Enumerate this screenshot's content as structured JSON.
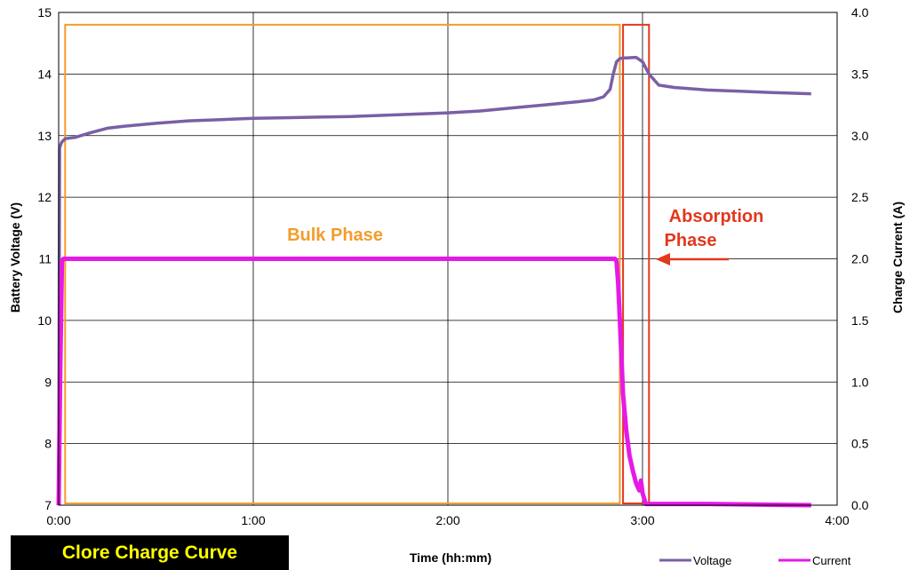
{
  "chart_data": {
    "type": "line",
    "title": "Clore Charge Curve",
    "xlabel": "Time (hh:mm)",
    "ylabel_left": "Battery Voltage (V)",
    "ylabel_right": "Charge Current (A)",
    "x_unit": "minutes",
    "xlim": [
      0,
      240
    ],
    "ylim_left": [
      7,
      15
    ],
    "ylim_right": [
      0,
      4
    ],
    "x_ticks": [
      {
        "value": 0,
        "label": "0:00"
      },
      {
        "value": 60,
        "label": "1:00"
      },
      {
        "value": 120,
        "label": "2:00"
      },
      {
        "value": 180,
        "label": "3:00"
      },
      {
        "value": 240,
        "label": "4:00"
      }
    ],
    "y_ticks_left": [
      "7",
      "8",
      "9",
      "10",
      "11",
      "12",
      "13",
      "14",
      "15"
    ],
    "y_ticks_right": [
      "0.0",
      "0.5",
      "1.0",
      "1.5",
      "2.0",
      "2.5",
      "3.0",
      "3.5",
      "4.0"
    ],
    "grid": true,
    "legend_position": "bottom-right",
    "series": [
      {
        "name": "Voltage",
        "axis": "left",
        "color": "#7a5fa6",
        "x": [
          0,
          0.3,
          0.6,
          1,
          2,
          5,
          10,
          15,
          20,
          30,
          40,
          50,
          60,
          70,
          80,
          90,
          100,
          110,
          120,
          130,
          140,
          150,
          160,
          165,
          168,
          170,
          171,
          172,
          173,
          174,
          175,
          178,
          180,
          182,
          185,
          190,
          200,
          210,
          220,
          232
        ],
        "values": [
          7.1,
          12.8,
          12.85,
          12.9,
          12.95,
          12.97,
          13.05,
          13.12,
          13.15,
          13.2,
          13.24,
          13.26,
          13.28,
          13.29,
          13.3,
          13.31,
          13.33,
          13.35,
          13.37,
          13.4,
          13.45,
          13.5,
          13.55,
          13.58,
          13.63,
          13.75,
          14.0,
          14.2,
          14.25,
          14.26,
          14.26,
          14.27,
          14.2,
          14.0,
          13.82,
          13.78,
          13.74,
          13.72,
          13.7,
          13.68
        ]
      },
      {
        "name": "Current",
        "axis": "right",
        "color": "#e619e6",
        "x": [
          0,
          0.5,
          1,
          1.5,
          10,
          40,
          80,
          120,
          160,
          171.5,
          172,
          172.5,
          173,
          173.5,
          174,
          175,
          176,
          177,
          178,
          178.5,
          179,
          179.5,
          180,
          181,
          200,
          232
        ],
        "values": [
          0,
          1.1,
          1.98,
          2.0,
          2.0,
          2.0,
          2.0,
          2.0,
          2.0,
          2.0,
          1.98,
          1.8,
          1.5,
          1.2,
          0.9,
          0.6,
          0.4,
          0.28,
          0.18,
          0.15,
          0.12,
          0.2,
          0.1,
          0.01,
          0.01,
          0.0
        ]
      }
    ],
    "phases": [
      {
        "label": "Bulk Phase",
        "color": "#f39c2b",
        "x_range": [
          2,
          173
        ],
        "y_range_left": [
          7,
          14.8
        ]
      },
      {
        "label": "Absorption Phase",
        "label_line1": "Absorption",
        "label_line2": "Phase",
        "color": "#e2381c",
        "x_range": [
          174,
          182
        ],
        "y_range_left": [
          7,
          14.8
        ]
      }
    ]
  }
}
